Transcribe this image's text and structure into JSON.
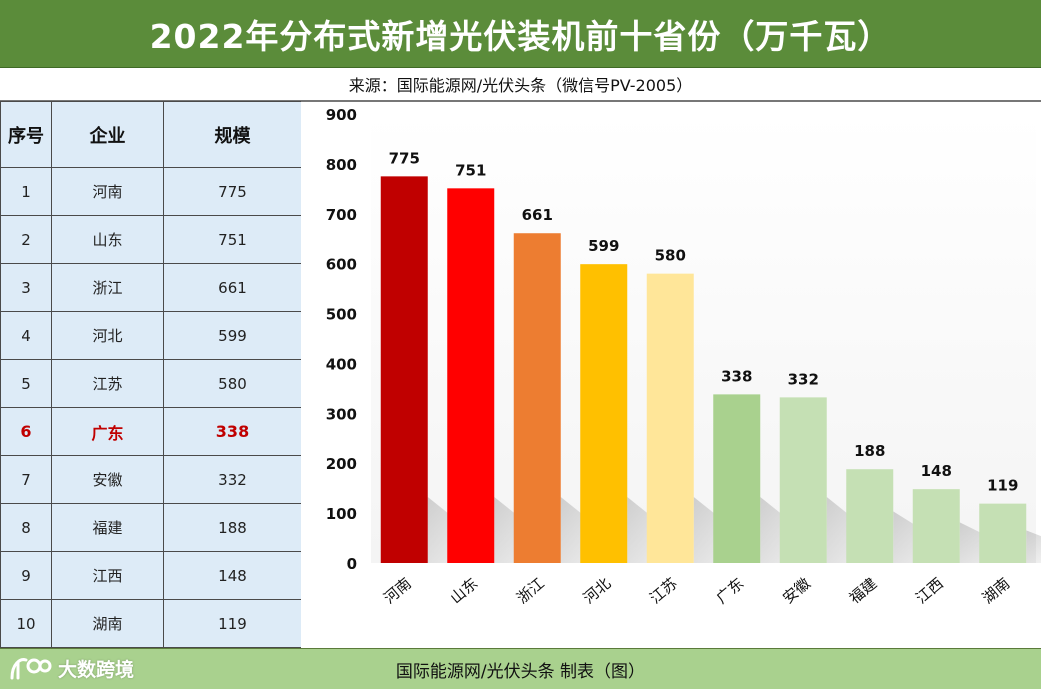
{
  "title": "2022年分布式新增光伏装机前十省份（万千瓦）",
  "source": "来源：国际能源网/光伏头条（微信号PV-2005）",
  "footer": "国际能源网/光伏头条  制表（图）",
  "watermark": "大数跨境",
  "table": {
    "headers": [
      "序号",
      "企业",
      "规模"
    ],
    "rows": [
      {
        "rank": "1",
        "province": "河南",
        "value": "775"
      },
      {
        "rank": "2",
        "province": "山东",
        "value": "751"
      },
      {
        "rank": "3",
        "province": "浙江",
        "value": "661"
      },
      {
        "rank": "4",
        "province": "河北",
        "value": "599"
      },
      {
        "rank": "5",
        "province": "江苏",
        "value": "580"
      },
      {
        "rank": "6",
        "province": "广东",
        "value": "338",
        "highlight": true
      },
      {
        "rank": "7",
        "province": "安徽",
        "value": "332"
      },
      {
        "rank": "8",
        "province": "福建",
        "value": "188"
      },
      {
        "rank": "9",
        "province": "江西",
        "value": "148"
      },
      {
        "rank": "10",
        "province": "湖南",
        "value": "119"
      }
    ]
  },
  "chart_data": {
    "type": "bar",
    "title": "2022年分布式新增光伏装机前十省份（万千瓦）",
    "xlabel": "",
    "ylabel": "",
    "ylim": [
      0,
      900
    ],
    "yticks": [
      0,
      100,
      200,
      300,
      400,
      500,
      600,
      700,
      800,
      900
    ],
    "grid": false,
    "categories": [
      "河南",
      "山东",
      "浙江",
      "河北",
      "江苏",
      "广东",
      "安徽",
      "福建",
      "江西",
      "湖南"
    ],
    "values": [
      775,
      751,
      661,
      599,
      580,
      338,
      332,
      188,
      148,
      119
    ],
    "bar_colors": [
      "#c00000",
      "#ff0000",
      "#ed7d31",
      "#ffc000",
      "#ffe699",
      "#a9d18e",
      "#c5e0b4",
      "#c5e0b4",
      "#c5e0b4",
      "#c5e0b4"
    ]
  },
  "colors": {
    "title_bg": "#5b8c3a",
    "table_bg": "#ddebf7",
    "footer_bg": "#a9d18e",
    "highlight": "#c00000"
  }
}
